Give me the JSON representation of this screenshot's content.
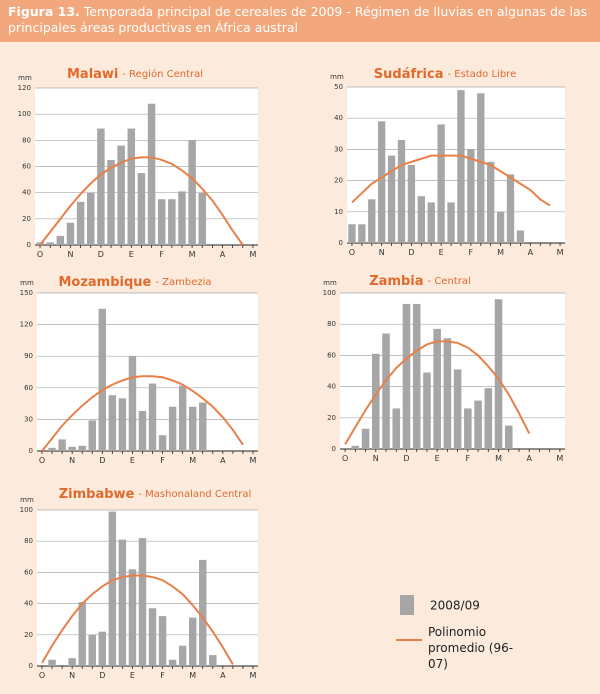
{
  "figure_label": "Figura 13.",
  "figure_title": "Temporada principal de cereales de 2009 - Régimen de lluvias en algunas de las principales áreas productivas en África austral",
  "legend": {
    "items": [
      {
        "label": "2008/09",
        "color": "#a6a6a6",
        "kind": "bar"
      },
      {
        "label": "Polinomio promedio (96-07)",
        "color": "#e8804a",
        "kind": "line"
      }
    ]
  },
  "chart_data": [
    {
      "type": "bar",
      "title": "Malawi",
      "subtitle": "- Región Central",
      "y_label": "mm",
      "categories": [
        "O",
        null,
        null,
        "N",
        null,
        null,
        "D",
        null,
        null,
        "E",
        null,
        null,
        "F",
        null,
        null,
        "M",
        null,
        null,
        "A",
        null,
        null,
        "M"
      ],
      "series": [
        {
          "color": "#a6a6a6",
          "values": [
            2,
            2,
            7,
            17,
            33,
            40,
            89,
            65,
            76,
            89,
            55,
            108,
            35,
            35,
            41,
            80,
            40,
            0,
            0,
            0,
            0,
            0
          ]
        },
        {
          "type": "line",
          "color": "#e8804a",
          "values": [
            0,
            10,
            20,
            30,
            39,
            47,
            54,
            59,
            63,
            66,
            67,
            67,
            65,
            62,
            57,
            51,
            43,
            34,
            23,
            11,
            0,
            null
          ]
        }
      ],
      "ylim": [
        0,
        120
      ],
      "yticks": [
        0,
        20,
        40,
        60,
        80,
        100,
        120
      ],
      "grid": true
    },
    {
      "type": "bar",
      "title": "Sudáfrica",
      "subtitle": "- Estado Libre",
      "y_label": "mm",
      "categories": [
        "O",
        null,
        null,
        "N",
        null,
        null,
        "D",
        null,
        null,
        "E",
        null,
        null,
        "F",
        null,
        null,
        "M",
        null,
        null,
        "A",
        null,
        null,
        "M"
      ],
      "series": [
        {
          "color": "#a6a6a6",
          "values": [
            6,
            6,
            14,
            39,
            28,
            33,
            25,
            15,
            13,
            38,
            13,
            49,
            30,
            48,
            26,
            10,
            22,
            4,
            0,
            0,
            0,
            0
          ]
        },
        {
          "type": "line",
          "color": "#e8804a",
          "values": [
            13,
            16,
            19,
            21,
            23,
            25,
            26,
            27,
            28,
            28,
            28,
            28,
            27,
            26,
            25,
            23,
            21,
            19,
            17,
            14,
            12,
            null
          ]
        }
      ],
      "ylim": [
        0,
        50
      ],
      "yticks": [
        0,
        10,
        20,
        30,
        40,
        50
      ],
      "grid": true
    },
    {
      "type": "bar",
      "title": "Mozambique",
      "subtitle": "- Zambezia",
      "y_label": "mm",
      "categories": [
        "O",
        null,
        null,
        "N",
        null,
        null,
        "D",
        null,
        null,
        "E",
        null,
        null,
        "F",
        null,
        null,
        "M",
        null,
        null,
        "A",
        null,
        null,
        "M"
      ],
      "series": [
        {
          "color": "#a6a6a6",
          "values": [
            0,
            3,
            11,
            4,
            5,
            29,
            135,
            53,
            50,
            90,
            38,
            64,
            15,
            42,
            62,
            42,
            46,
            0,
            0,
            0,
            0,
            0
          ]
        },
        {
          "type": "line",
          "color": "#e8804a",
          "values": [
            0,
            12,
            24,
            34,
            43,
            51,
            58,
            63,
            67,
            70,
            71,
            71,
            70,
            67,
            63,
            57,
            50,
            42,
            32,
            20,
            6,
            null
          ]
        }
      ],
      "ylim": [
        0,
        150
      ],
      "yticks": [
        0,
        30,
        60,
        90,
        120,
        150
      ],
      "grid": true
    },
    {
      "type": "bar",
      "title": "Zambia",
      "subtitle": "- Central",
      "y_label": "mm",
      "categories": [
        "O",
        null,
        null,
        "N",
        null,
        null,
        "D",
        null,
        null,
        "E",
        null,
        null,
        "F",
        null,
        null,
        "M",
        null,
        null,
        "A",
        null,
        null,
        "M"
      ],
      "series": [
        {
          "color": "#a6a6a6",
          "values": [
            0,
            2,
            13,
            61,
            74,
            26,
            93,
            93,
            49,
            77,
            71,
            51,
            26,
            31,
            39,
            96,
            15,
            0,
            0,
            0,
            0,
            0
          ]
        },
        {
          "type": "line",
          "color": "#e8804a",
          "values": [
            3,
            14,
            25,
            35,
            44,
            52,
            58,
            63,
            67,
            69,
            69,
            68,
            65,
            60,
            53,
            45,
            35,
            23,
            10,
            null,
            null,
            null
          ]
        }
      ],
      "ylim": [
        0,
        100
      ],
      "yticks": [
        0,
        20,
        40,
        60,
        80,
        100
      ],
      "grid": true
    },
    {
      "type": "bar",
      "title": "Zimbabwe",
      "subtitle": "- Mashonaland Central",
      "y_label": "mm",
      "categories": [
        "O",
        null,
        null,
        "N",
        null,
        null,
        "D",
        null,
        null,
        "E",
        null,
        null,
        "F",
        null,
        null,
        "M",
        null,
        null,
        "A",
        null,
        null,
        "M"
      ],
      "series": [
        {
          "color": "#a6a6a6",
          "values": [
            0,
            4,
            0,
            5,
            41,
            20,
            22,
            99,
            81,
            62,
            82,
            37,
            32,
            4,
            13,
            31,
            68,
            7,
            0,
            0,
            0,
            0
          ]
        },
        {
          "type": "line",
          "color": "#e8804a",
          "values": [
            2,
            13,
            23,
            32,
            40,
            46,
            51,
            55,
            57,
            58,
            58,
            57,
            55,
            51,
            46,
            39,
            31,
            22,
            12,
            1,
            null,
            null
          ]
        }
      ],
      "ylim": [
        0,
        100
      ],
      "yticks": [
        0,
        20,
        40,
        60,
        80,
        100
      ],
      "grid": true
    }
  ]
}
